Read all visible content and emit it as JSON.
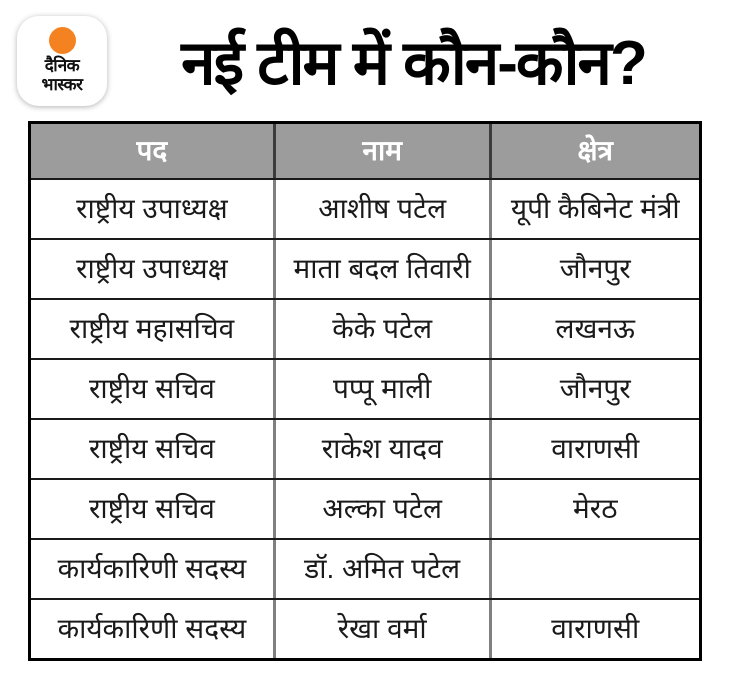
{
  "logo": {
    "name": "dainik-bhaskar",
    "line1": "दैनिक",
    "line2": "भास्कर",
    "dot_color": "#f58220"
  },
  "title": "नई टीम में कौन-कौन?",
  "table": {
    "columns": [
      "पद",
      "नाम",
      "क्षेत्र"
    ],
    "rows": [
      [
        "राष्ट्रीय उपाध्यक्ष",
        "आशीष पटेल",
        "यूपी कैबिनेट मंत्री"
      ],
      [
        "राष्ट्रीय उपाध्यक्ष",
        "माता बदल तिवारी",
        "जौनपुर"
      ],
      [
        "राष्ट्रीय महासचिव",
        "केके पटेल",
        "लखनऊ"
      ],
      [
        "राष्ट्रीय सचिव",
        "पप्पू माली",
        "जौनपुर"
      ],
      [
        "राष्ट्रीय सचिव",
        "राकेश यादव",
        "वाराणसी"
      ],
      [
        "राष्ट्रीय सचिव",
        "अल्का पटेल",
        "मेरठ"
      ],
      [
        "कार्यकारिणी सदस्य",
        "डॉ. अमित पटेल",
        ""
      ],
      [
        "कार्यकारिणी सदस्य",
        "रेखा वर्मा",
        "वाराणसी"
      ]
    ]
  },
  "colors": {
    "header_bg": "#9c9c9c",
    "header_text": "#ffffff",
    "body_text": "#1a1a1a",
    "outer_border": "#000000",
    "column_divider": "#808080",
    "accent_orange": "#f58220"
  },
  "chart_data": {
    "type": "table",
    "title": "नई टीम में कौन-कौन?",
    "columns": [
      "पद",
      "नाम",
      "क्षेत्र"
    ],
    "rows": [
      [
        "राष्ट्रीय उपाध्यक्ष",
        "आशीष पटेल",
        "यूपी कैबिनेट मंत्री"
      ],
      [
        "राष्ट्रीय उपाध्यक्ष",
        "माता बदल तिवारी",
        "जौनपुर"
      ],
      [
        "राष्ट्रीय महासचिव",
        "केके पटेल",
        "लखनऊ"
      ],
      [
        "राष्ट्रीय सचिव",
        "पप्पू माली",
        "जौनपुर"
      ],
      [
        "राष्ट्रीय सचिव",
        "राकेश यादव",
        "वाराणसी"
      ],
      [
        "राष्ट्रीय सचिव",
        "अल्का पटेल",
        "मेरठ"
      ],
      [
        "कार्यकारिणी सदस्य",
        "डॉ. अमित पटेल",
        ""
      ],
      [
        "कार्यकारिणी सदस्य",
        "रेखा वर्मा",
        "वाराणसी"
      ]
    ]
  }
}
